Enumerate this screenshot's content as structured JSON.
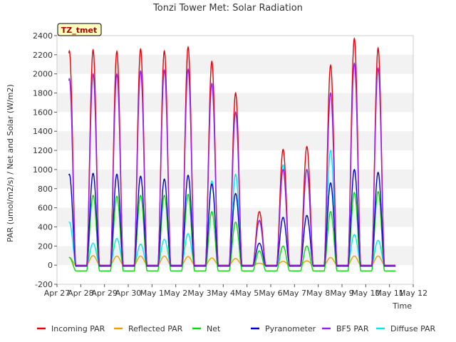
{
  "chart_data": {
    "type": "line",
    "title": "Tonzi Tower Met: Solar Radiation",
    "xlabel": "Time",
    "ylabel": "PAR (umol/m2/s) / Net and Solar (W/m2)",
    "ylim": [
      -200,
      2400
    ],
    "xlim": [
      0,
      15
    ],
    "y_ticks": [
      -200,
      0,
      200,
      400,
      600,
      800,
      1000,
      1200,
      1400,
      1600,
      1800,
      2000,
      2200,
      2400
    ],
    "x_ticks": [
      {
        "pos": 0,
        "label": "Apr 27"
      },
      {
        "pos": 1,
        "label": "Apr 28"
      },
      {
        "pos": 2,
        "label": "Apr 29"
      },
      {
        "pos": 3,
        "label": "Apr 30"
      },
      {
        "pos": 4,
        "label": "May 1"
      },
      {
        "pos": 5,
        "label": "May 2"
      },
      {
        "pos": 6,
        "label": "May 3"
      },
      {
        "pos": 7,
        "label": "May 4"
      },
      {
        "pos": 8,
        "label": "May 5"
      },
      {
        "pos": 9,
        "label": "May 6"
      },
      {
        "pos": 10,
        "label": "May 7"
      },
      {
        "pos": 11,
        "label": "May 8"
      },
      {
        "pos": 12,
        "label": "May 9"
      },
      {
        "pos": 13,
        "label": "May 10"
      },
      {
        "pos": 14,
        "label": "May 11"
      },
      {
        "pos": 15,
        "label": "May 12"
      }
    ],
    "grid": "horizontal-bands",
    "legend_position": "bottom",
    "annotation": "TZ_tmet",
    "day_starts": [
      0.5,
      1,
      2,
      3,
      4,
      5,
      6,
      7,
      8,
      9,
      10,
      11,
      12,
      13,
      14
    ],
    "daily_peaks": {
      "incoming_par": [
        2240,
        2250,
        2235,
        2260,
        2240,
        2280,
        2130,
        1800,
        560,
        1210,
        1240,
        2090,
        2370,
        2270
      ],
      "reflected_par": [
        80,
        100,
        95,
        95,
        95,
        90,
        75,
        70,
        20,
        40,
        45,
        80,
        95,
        95
      ],
      "net": [
        80,
        730,
        720,
        730,
        730,
        740,
        560,
        450,
        150,
        200,
        200,
        560,
        760,
        770
      ],
      "pyranometer": [
        950,
        960,
        950,
        930,
        900,
        940,
        850,
        750,
        230,
        500,
        520,
        860,
        1000,
        970
      ],
      "bf5_par": [
        1950,
        2000,
        2000,
        2030,
        2040,
        2050,
        1900,
        1600,
        470,
        1000,
        1000,
        1800,
        2110,
        2060
      ],
      "diffuse_par": [
        450,
        230,
        280,
        220,
        270,
        330,
        880,
        950,
        460,
        1050,
        1000,
        1200,
        320,
        260
      ]
    },
    "night_values": {
      "incoming_par": 0,
      "reflected_par": 0,
      "net": -60,
      "pyranometer": -10,
      "bf5_par": 0,
      "diffuse_par": -5
    },
    "series": [
      {
        "key": "incoming_par",
        "name": "Incoming PAR",
        "color": "#e8000b"
      },
      {
        "key": "reflected_par",
        "name": "Reflected PAR",
        "color": "#f0a000"
      },
      {
        "key": "net",
        "name": "Net",
        "color": "#00dd00"
      },
      {
        "key": "pyranometer",
        "name": "Pyranometer",
        "color": "#0000cc"
      },
      {
        "key": "bf5_par",
        "name": "BF5 PAR",
        "color": "#9a20ee"
      },
      {
        "key": "diffuse_par",
        "name": "Diffuse PAR",
        "color": "#00e8f0"
      }
    ]
  }
}
